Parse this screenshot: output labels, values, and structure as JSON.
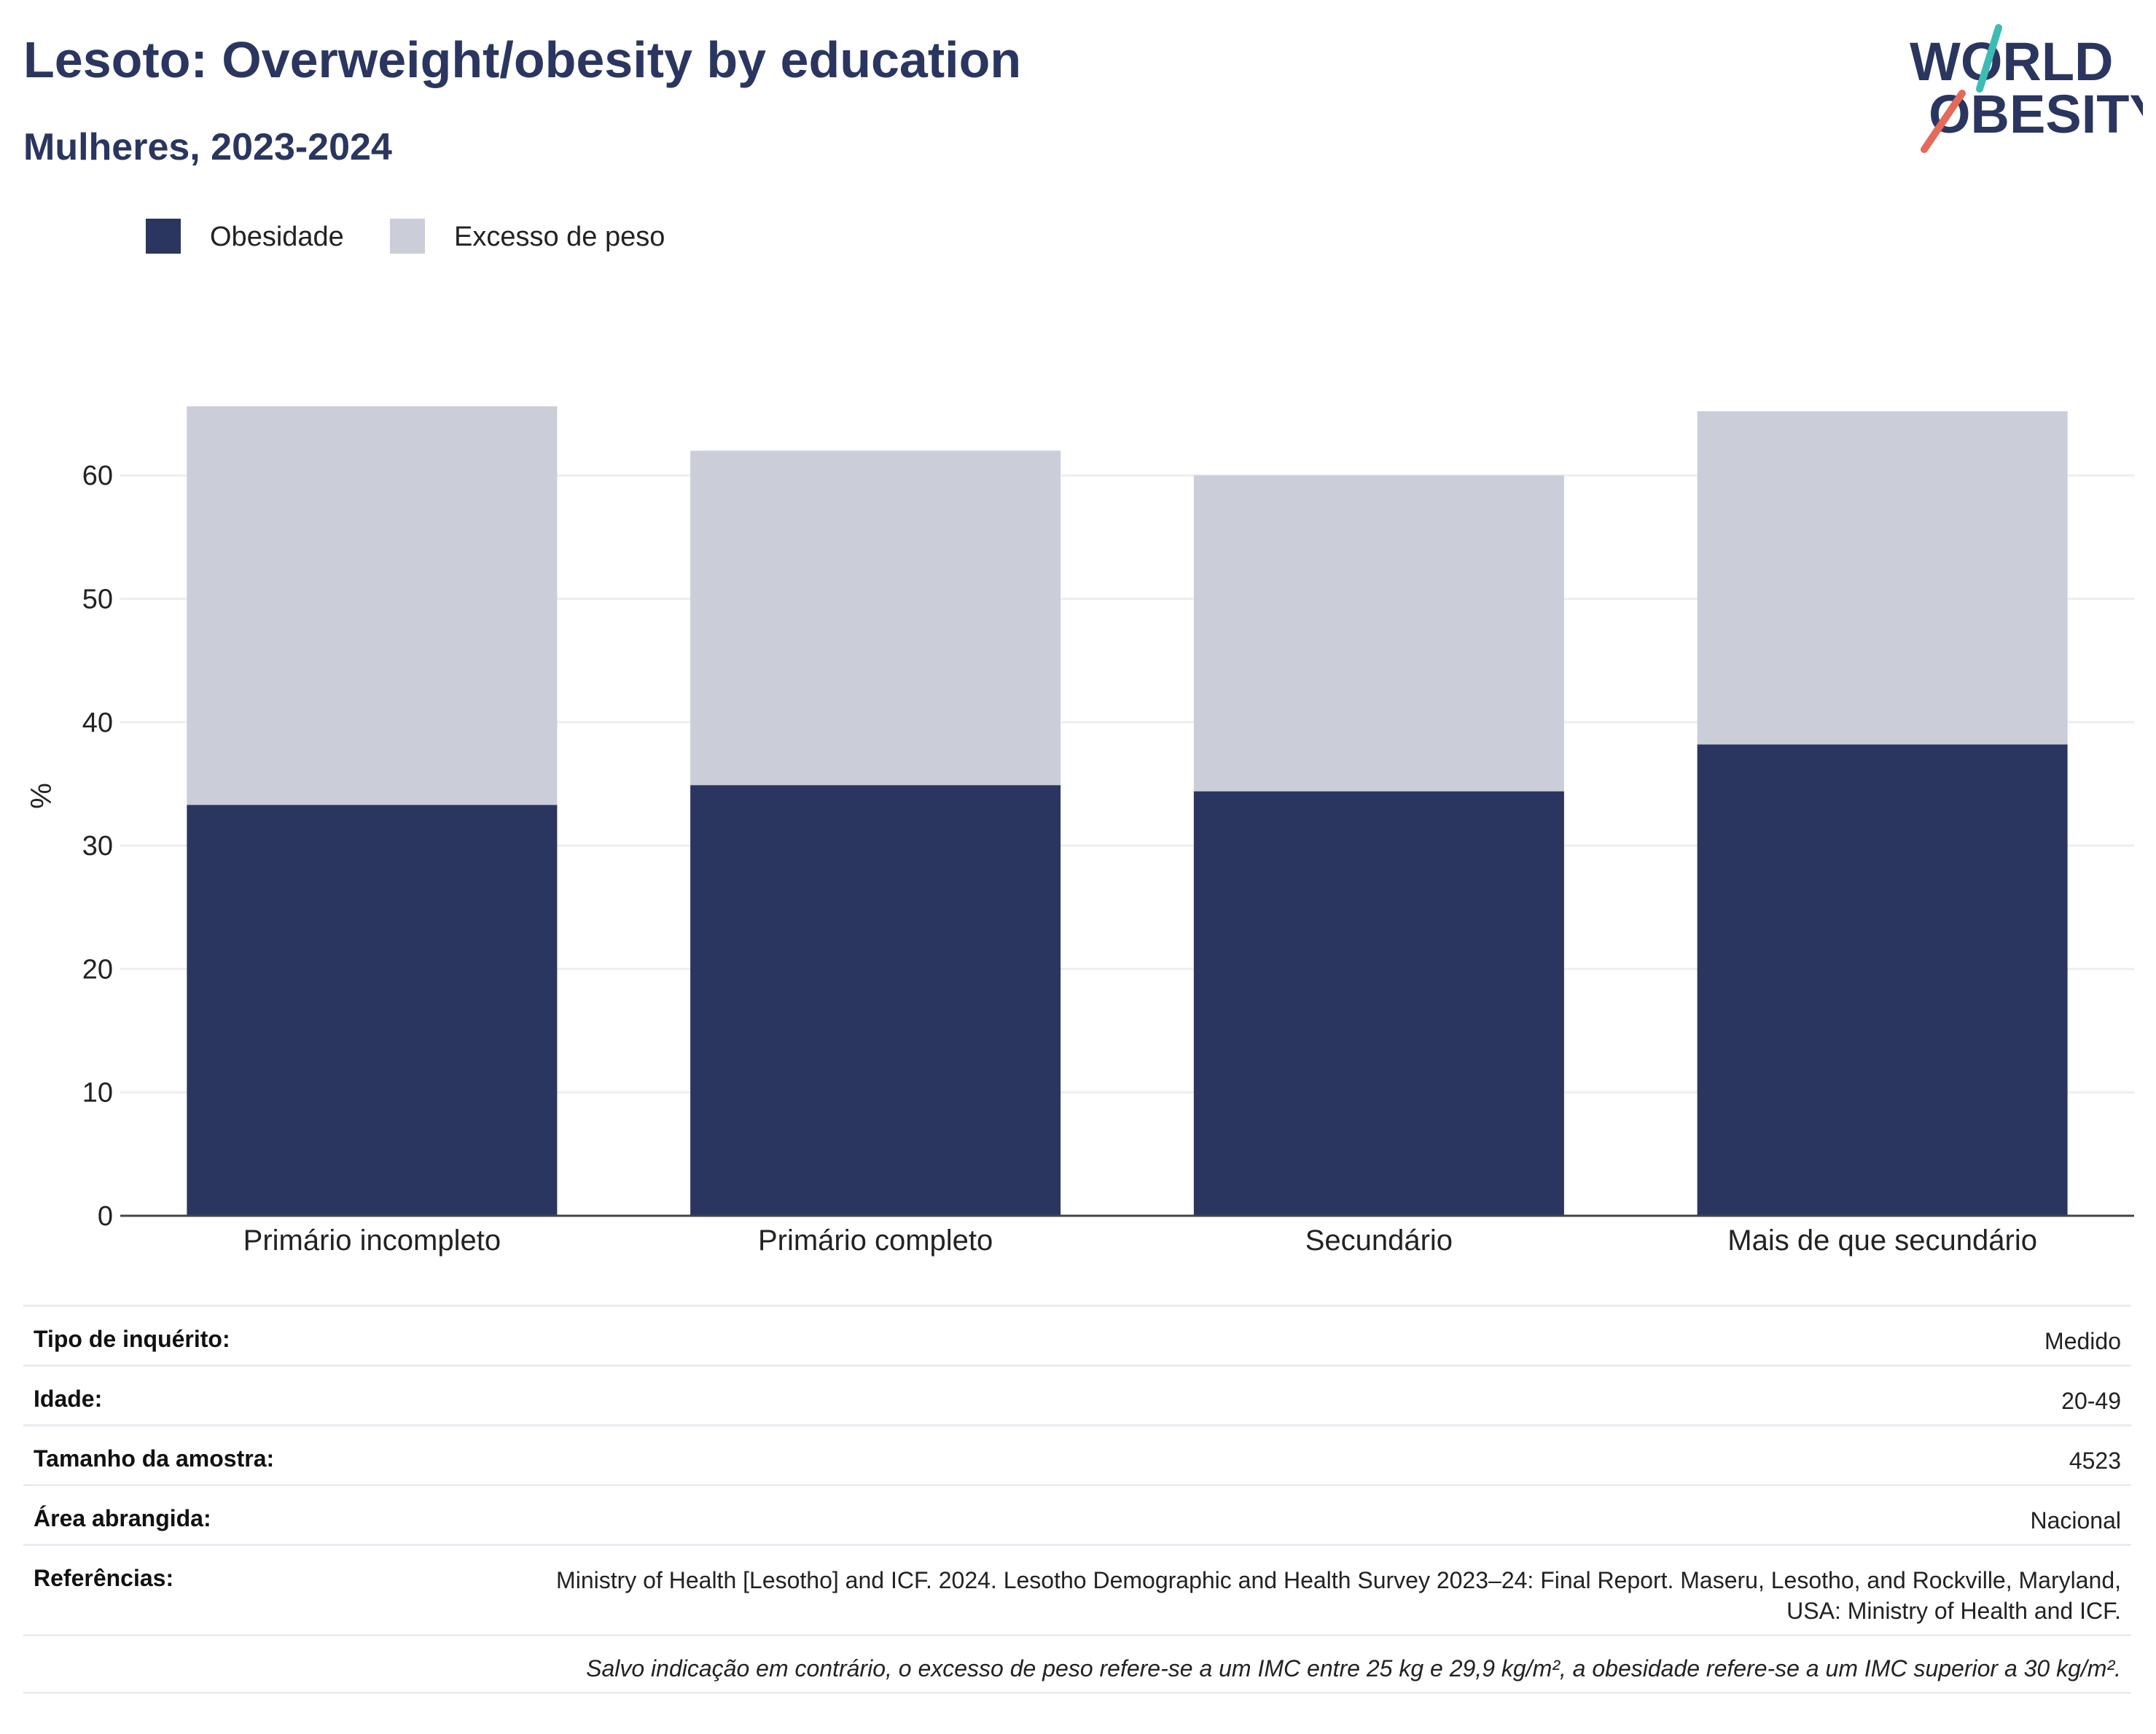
{
  "header": {
    "title": "Lesoto: Overweight/obesity by education",
    "subtitle": "Mulheres, 2023-2024"
  },
  "logo": {
    "line1": "WORLD",
    "line2": "OBESITY"
  },
  "colors": {
    "obesity": "#2a365f",
    "overweight": "#cbcdd8",
    "title": "#2a365f",
    "logo_teal": "#3cbcb4",
    "logo_red": "#e46a5a",
    "grid": "#eceef2",
    "axis": "#444444"
  },
  "chart_data": {
    "type": "bar",
    "stacked": true,
    "categories": [
      "Primário incompleto",
      "Primário completo",
      "Secundário",
      "Mais de que secundário"
    ],
    "series": [
      {
        "name": "Obesidade",
        "values": [
          33.3,
          34.9,
          34.4,
          38.2
        ]
      },
      {
        "name": "Excesso de peso",
        "values": [
          32.3,
          27.1,
          25.6,
          27.0
        ]
      }
    ],
    "ylabel": "%",
    "ylim": [
      0,
      70
    ],
    "yticks": [
      0,
      10,
      20,
      30,
      40,
      50,
      60
    ],
    "grid": true,
    "legend_position": "top-left"
  },
  "info": {
    "rows": [
      {
        "label": "Tipo de inquérito:",
        "value": "Medido"
      },
      {
        "label": "Idade:",
        "value": "20-49"
      },
      {
        "label": "Tamanho da amostra:",
        "value": "4523"
      },
      {
        "label": "Área abrangida:",
        "value": "Nacional"
      },
      {
        "label": "Referências:",
        "value": "Ministry of Health [Lesotho] and ICF. 2024. Lesotho Demographic and Health Survey 2023–24: Final Report. Maseru, Lesotho, and Rockville, Maryland, USA: Ministry of Health and ICF."
      }
    ],
    "note": "Salvo indicação em contrário, o excesso de peso refere-se a um IMC entre 25 kg e 29,9 kg/m², a obesidade refere-se a um IMC superior a 30 kg/m²."
  }
}
